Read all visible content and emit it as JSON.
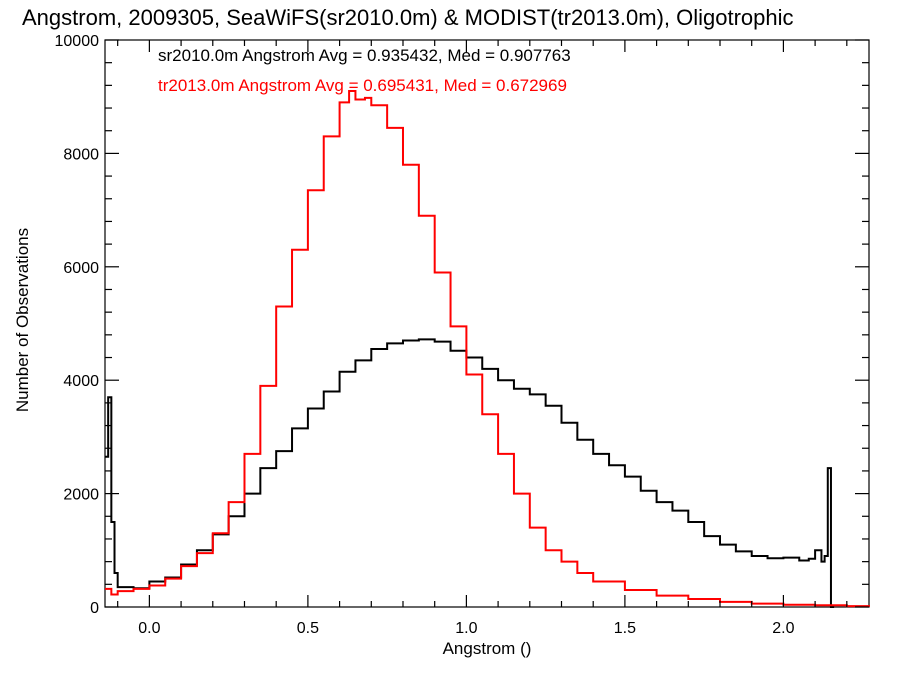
{
  "chart_data": {
    "type": "line",
    "title": "Angstrom, 2009305, SeaWiFS(sr2010.0m) & MODIST(tr2013.0m), Oligotrophic",
    "xlabel": "Angstrom ()",
    "ylabel": "Number of Observations",
    "xlim": [
      -0.14,
      2.27
    ],
    "ylim": [
      0,
      10000
    ],
    "x_ticks": [
      0.0,
      0.5,
      1.0,
      1.5,
      2.0
    ],
    "x_tick_labels": [
      "0.0",
      "0.5",
      "1.0",
      "1.5",
      "2.0"
    ],
    "y_ticks": [
      0,
      2000,
      4000,
      6000,
      8000,
      10000
    ],
    "y_tick_labels": [
      "0",
      "2000",
      "4000",
      "6000",
      "8000",
      "10000"
    ],
    "grid": false,
    "annotations": [
      {
        "text": "sr2010.0m Angstrom Avg = 0.935432, Med = 0.907763",
        "color": "#000000"
      },
      {
        "text": "tr2013.0m Angstrom Avg = 0.695431, Med = 0.672969",
        "color": "#ff0000"
      }
    ],
    "series": [
      {
        "color": "#000000",
        "step": true,
        "x": [
          -0.14,
          -0.13,
          -0.12,
          -0.11,
          -0.1,
          -0.05,
          0.0,
          0.05,
          0.1,
          0.15,
          0.2,
          0.25,
          0.3,
          0.35,
          0.4,
          0.45,
          0.5,
          0.55,
          0.6,
          0.65,
          0.7,
          0.75,
          0.8,
          0.85,
          0.9,
          0.95,
          1.0,
          1.05,
          1.1,
          1.15,
          1.2,
          1.25,
          1.3,
          1.35,
          1.4,
          1.45,
          1.5,
          1.55,
          1.6,
          1.65,
          1.7,
          1.75,
          1.8,
          1.85,
          1.9,
          1.95,
          2.0,
          2.05,
          2.08,
          2.1,
          2.12,
          2.13,
          2.14,
          2.15
        ],
        "y": [
          2650,
          3700,
          1500,
          600,
          350,
          330,
          450,
          520,
          750,
          1000,
          1280,
          1600,
          2000,
          2450,
          2750,
          3150,
          3500,
          3800,
          4150,
          4350,
          4550,
          4650,
          4700,
          4720,
          4680,
          4520,
          4400,
          4200,
          4000,
          3850,
          3750,
          3550,
          3250,
          2950,
          2700,
          2500,
          2300,
          2050,
          1850,
          1700,
          1500,
          1250,
          1100,
          980,
          900,
          860,
          870,
          820,
          850,
          1000,
          800,
          900,
          2450,
          0
        ]
      },
      {
        "color": "#ff0000",
        "step": true,
        "x": [
          -0.14,
          -0.12,
          -0.1,
          -0.05,
          0.0,
          0.05,
          0.1,
          0.15,
          0.2,
          0.25,
          0.3,
          0.35,
          0.4,
          0.45,
          0.5,
          0.55,
          0.6,
          0.63,
          0.65,
          0.68,
          0.7,
          0.75,
          0.8,
          0.85,
          0.9,
          0.95,
          1.0,
          1.05,
          1.1,
          1.15,
          1.2,
          1.25,
          1.3,
          1.35,
          1.4,
          1.5,
          1.6,
          1.7,
          1.8,
          1.9,
          2.0,
          2.1,
          2.2,
          2.27
        ],
        "y": [
          320,
          220,
          280,
          320,
          380,
          500,
          720,
          950,
          1300,
          1850,
          2700,
          3900,
          5300,
          6300,
          7350,
          8300,
          8900,
          9100,
          8950,
          8980,
          8850,
          8450,
          7800,
          6900,
          5900,
          4950,
          4100,
          3400,
          2700,
          2000,
          1400,
          1000,
          800,
          600,
          450,
          300,
          200,
          140,
          90,
          60,
          40,
          30,
          15,
          5
        ]
      }
    ]
  }
}
